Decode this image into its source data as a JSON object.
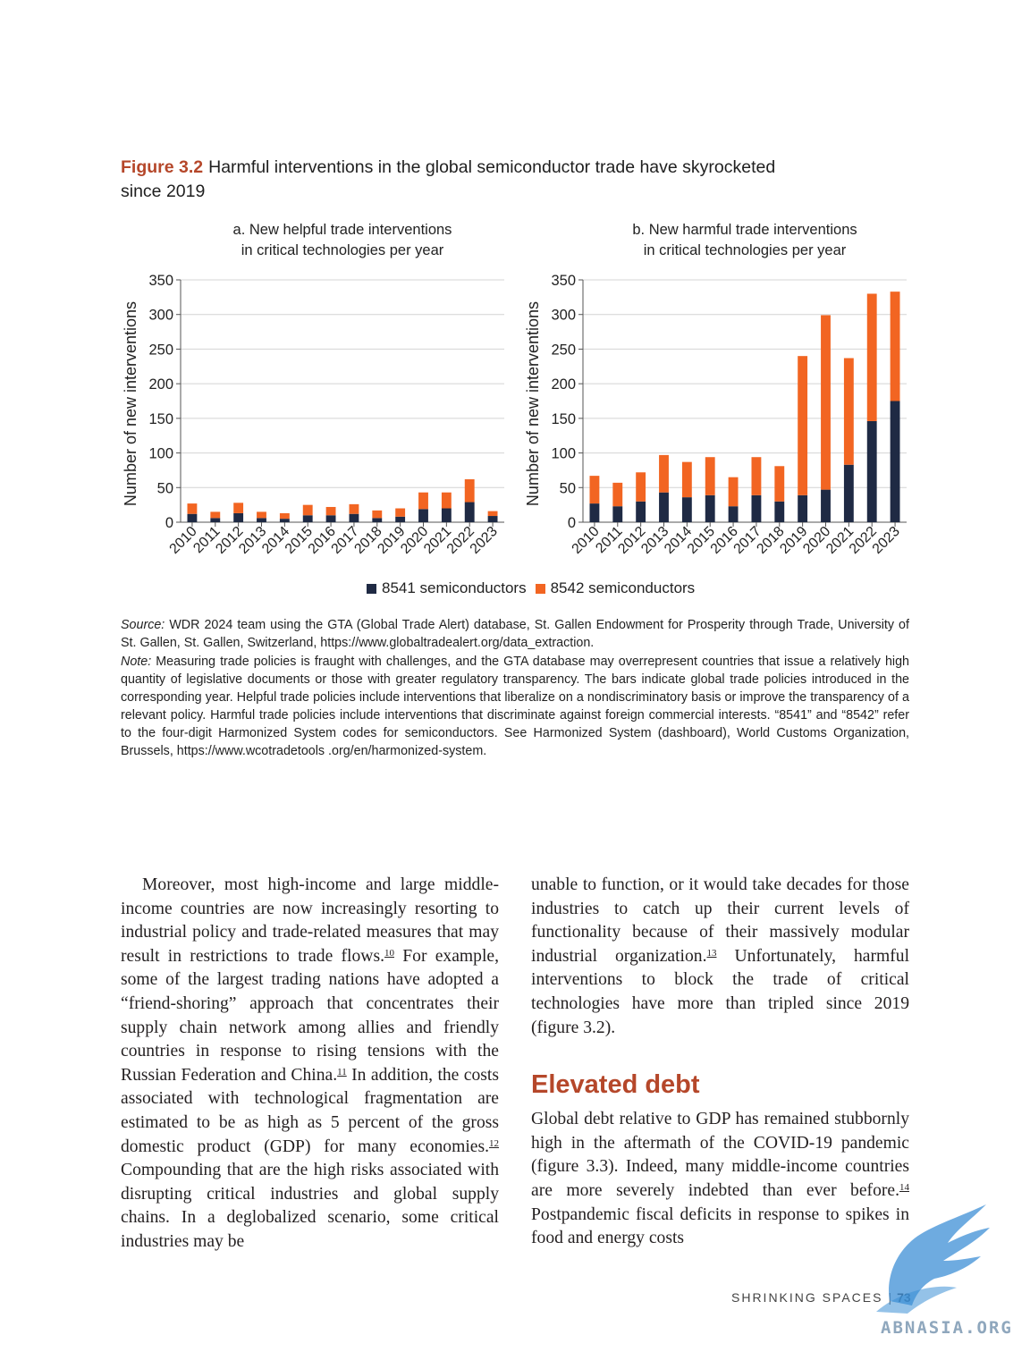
{
  "figure": {
    "label": "Figure 3.2",
    "title": "Harmful interventions in the global semiconductor trade have skyrocketed since 2019"
  },
  "colors": {
    "series_8541": "#1f2a44",
    "series_8542": "#f26522",
    "heading": "#b5472a"
  },
  "chart_data": [
    {
      "type": "bar",
      "stacked": true,
      "title": "a. New helpful trade interventions in critical technologies per year",
      "title_lines": [
        "a. New helpful trade interventions",
        "in critical technologies per year"
      ],
      "ylabel": "Number of new interventions",
      "xlabel": "",
      "ylim": [
        0,
        350
      ],
      "yticks": [
        0,
        50,
        100,
        150,
        200,
        250,
        300,
        350
      ],
      "grid": true,
      "categories": [
        "2010",
        "2011",
        "2012",
        "2013",
        "2014",
        "2015",
        "2016",
        "2017",
        "2018",
        "2019",
        "2020",
        "2021",
        "2022",
        "2023"
      ],
      "series": [
        {
          "name": "8541 semiconductors",
          "values": [
            12,
            6,
            13,
            6,
            5,
            10,
            10,
            12,
            6,
            8,
            19,
            20,
            29,
            9
          ]
        },
        {
          "name": "8542 semiconductors",
          "values": [
            15,
            9,
            15,
            9,
            8,
            15,
            12,
            14,
            11,
            12,
            24,
            23,
            33,
            7
          ]
        }
      ]
    },
    {
      "type": "bar",
      "stacked": true,
      "title": "b. New harmful trade interventions in critical technologies per year",
      "title_lines": [
        "b. New harmful trade interventions",
        "in critical technologies per year"
      ],
      "ylabel": "Number of new interventions",
      "xlabel": "",
      "ylim": [
        0,
        350
      ],
      "yticks": [
        0,
        50,
        100,
        150,
        200,
        250,
        300,
        350
      ],
      "grid": true,
      "categories": [
        "2010",
        "2011",
        "2012",
        "2013",
        "2014",
        "2015",
        "2016",
        "2017",
        "2018",
        "2019",
        "2020",
        "2021",
        "2022",
        "2023"
      ],
      "series": [
        {
          "name": "8541 semiconductors",
          "values": [
            27,
            23,
            30,
            43,
            36,
            39,
            23,
            39,
            30,
            39,
            47,
            83,
            146,
            175
          ]
        },
        {
          "name": "8542 semiconductors",
          "values": [
            40,
            34,
            42,
            54,
            51,
            55,
            42,
            55,
            51,
            201,
            252,
            154,
            184,
            158
          ]
        }
      ]
    }
  ],
  "legend": {
    "items": [
      "8541 semiconductors",
      "8542 semiconductors"
    ],
    "placement": "bottom-center"
  },
  "source": {
    "label": "Source:",
    "text": "WDR 2024 team using the GTA (Global Trade Alert) database, St. Gallen Endowment for Prosperity through Trade, University of St. Gallen, St. Gallen, Switzerland, https://www.globaltradealert.org/data_extraction."
  },
  "note": {
    "label": "Note:",
    "text": "Measuring trade policies is fraught with challenges, and the GTA database may overrepresent countries that issue a relatively high quantity of legislative documents or those with greater regulatory transparency. The bars indicate global trade policies introduced in the corresponding year. Helpful trade policies include interventions that liberalize on a nondiscriminatory basis or improve the transparency of a relevant policy. Harmful trade policies include interventions that discriminate against foreign commercial interests. “8541” and “8542” refer to the four-digit Harmonized System codes for semiconductors. See Harmonized System (dashboard), World Customs Organization, Brussels, https://www.wcotradetools .org/en/harmonized-system."
  },
  "body": {
    "left": {
      "p1a": "Moreover, most high-income and large middle-income countries are now increasingly resorting to industrial policy and trade-related measures that may result in restrictions to trade flows.",
      "fn10": "10",
      "p1b": " For example, some of the largest trading nations have adopted a “friend-shoring” approach that concentrates their supply chain network among allies and friendly countries in response to rising tensions with the Russian Federation and China.",
      "fn11": "11",
      "p1c": " In addition, the costs associated with technological fragmentation are estimated to be as high as 5 percent of the gross domestic product (GDP) for many economies.",
      "fn12": "12",
      "p1d": " Compounding that are the high risks associated with disrupting critical industries and global supply chains. In a deglobalized scenario, some critical industries may be"
    },
    "right": {
      "p1a": "unable to function, or it would take decades for those industries to catch up their current levels of functionality because of their massively modular industrial organization.",
      "fn13": "13",
      "p1b": " Unfortunately, harmful interventions to block the trade of critical technologies have more than tripled since 2019 (figure 3.2).",
      "heading": "Elevated debt",
      "p2a": "Global debt relative to GDP has remained stubbornly high in the aftermath of the COVID-19 pandemic (figure 3.3). Indeed, many middle-income countries are more severely indebted than ever before.",
      "fn14": "14",
      "p2b": " Postpandemic fiscal deficits in response to spikes in food and energy costs"
    }
  },
  "footer": {
    "section": "SHRINKING SPACES",
    "separator": "|",
    "page": "73"
  },
  "watermark": {
    "text": "ABNASIA.ORG"
  }
}
